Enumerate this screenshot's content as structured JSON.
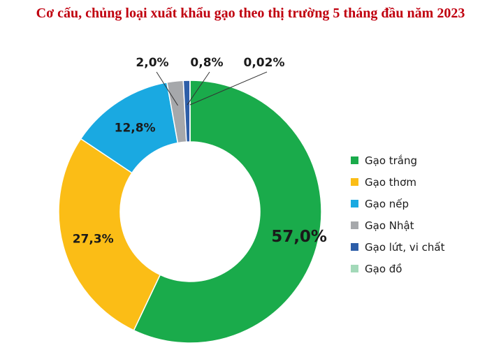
{
  "title": "Cơ cấu, chủng loại xuất khẩu gạo theo thị trường 5 tháng đầu năm 2023",
  "colors": {
    "title": "#c0000f",
    "label": "#1a1a1a"
  },
  "chart_data": {
    "type": "pie",
    "donut": true,
    "categories": [
      "Gạo trắng",
      "Gạo thơm",
      "Gạo nếp",
      "Gạo Nhật",
      "Gạo lứt, vi chất",
      "Gạo đồ"
    ],
    "values": [
      57.0,
      27.3,
      12.8,
      2.0,
      0.8,
      0.02
    ],
    "value_labels": [
      "57,0%",
      "27,3%",
      "12,8%",
      "2,0%",
      "0,8%",
      "0,02%"
    ],
    "colors": [
      "#1aab4b",
      "#fbbd16",
      "#1aa9e1",
      "#a6a8ab",
      "#2d5ea8",
      "#a3d9b9"
    ],
    "legend_position": "right"
  }
}
